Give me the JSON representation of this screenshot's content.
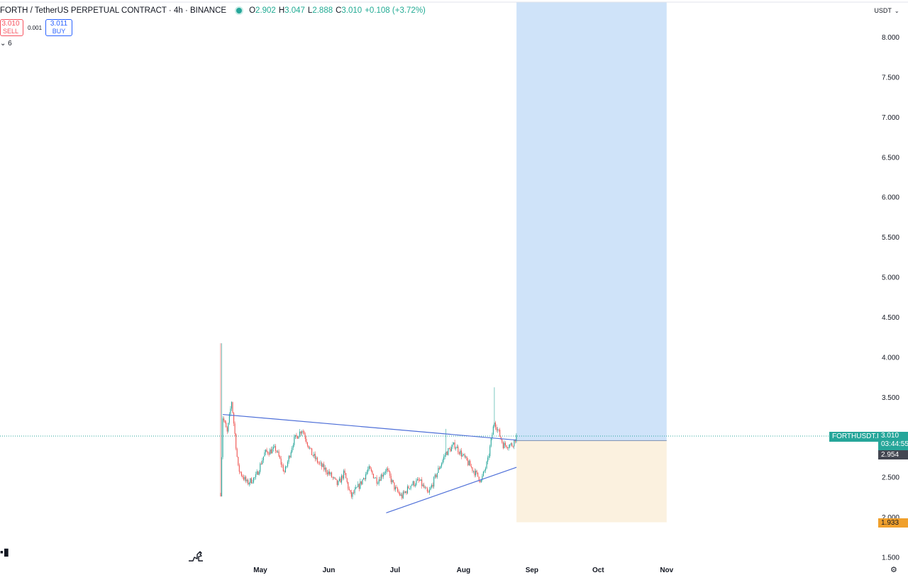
{
  "header": {
    "symbol_title": "FORTH / TetherUS PERPETUAL CONTRACT · 4h · BINANCE",
    "ohlc": {
      "o_label": "O",
      "o": "2.902",
      "h_label": "H",
      "h": "3.047",
      "l_label": "L",
      "l": "2.888",
      "c_label": "C",
      "c": "3.010",
      "change": "+0.108 (+3.72%)"
    }
  },
  "trade": {
    "sell_price": "3.010",
    "sell_label": "SELL",
    "spread": "0.001",
    "buy_price": "3.011",
    "buy_label": "BUY"
  },
  "indicator_label": "6",
  "currency": "USDT",
  "price_axis": {
    "symbol_label": "FORTHUSDT.P",
    "last_price": "3.010",
    "countdown": "03:44:55",
    "position_entry": "2.954",
    "stop_level": "1.933"
  },
  "colors": {
    "up": "#26a69a",
    "down": "#ef5350",
    "trendline": "#4e6fd8",
    "profit_zone": "#cfe3f9",
    "loss_zone": "#fbf1df"
  },
  "icons": {
    "logo": "tradingview-logo-icon",
    "watermark": "dino-icon",
    "settings": "gear-icon"
  },
  "chart_data": {
    "type": "candlestick",
    "title": "FORTH / TetherUS PERPETUAL CONTRACT · 4h · BINANCE",
    "x_ticks": [
      "May",
      "Jun",
      "Jul",
      "Aug",
      "Sep",
      "Oct",
      "Nov"
    ],
    "y_ticks": [
      "1.500",
      "2.000",
      "2.500",
      "3.000",
      "3.500",
      "4.000",
      "4.500",
      "5.000",
      "5.500",
      "6.000",
      "6.500",
      "7.000",
      "7.500",
      "8.000"
    ],
    "ylim": [
      1.45,
      8.4
    ],
    "grid": false,
    "series": [
      {
        "approx_close_path": [
          [
            "2024-04-13",
            2.3
          ],
          [
            "2024-04-14",
            3.25
          ],
          [
            "2024-04-16",
            3.05
          ],
          [
            "2024-04-18",
            3.45
          ],
          [
            "2024-04-21",
            2.6
          ],
          [
            "2024-04-25",
            2.42
          ],
          [
            "2024-04-29",
            2.5
          ],
          [
            "2024-05-03",
            2.8
          ],
          [
            "2024-05-08",
            2.85
          ],
          [
            "2024-05-12",
            2.55
          ],
          [
            "2024-05-16",
            2.95
          ],
          [
            "2024-05-20",
            3.1
          ],
          [
            "2024-05-24",
            2.8
          ],
          [
            "2024-05-28",
            2.65
          ],
          [
            "2024-06-01",
            2.55
          ],
          [
            "2024-06-05",
            2.4
          ],
          [
            "2024-06-08",
            2.55
          ],
          [
            "2024-06-11",
            2.25
          ],
          [
            "2024-06-15",
            2.4
          ],
          [
            "2024-06-19",
            2.6
          ],
          [
            "2024-06-23",
            2.45
          ],
          [
            "2024-06-27",
            2.6
          ],
          [
            "2024-07-01",
            2.35
          ],
          [
            "2024-07-04",
            2.25
          ],
          [
            "2024-07-08",
            2.4
          ],
          [
            "2024-07-12",
            2.45
          ],
          [
            "2024-07-16",
            2.28
          ],
          [
            "2024-07-20",
            2.55
          ],
          [
            "2024-07-24",
            2.8
          ],
          [
            "2024-07-28",
            2.9
          ],
          [
            "2024-08-01",
            2.75
          ],
          [
            "2024-08-05",
            2.6
          ],
          [
            "2024-08-09",
            2.45
          ],
          [
            "2024-08-12",
            2.7
          ],
          [
            "2024-08-15",
            3.2
          ],
          [
            "2024-08-19",
            2.9
          ],
          [
            "2024-08-23",
            2.9
          ],
          [
            "2024-08-25",
            3.01
          ]
        ],
        "wick_extremes": {
          "high": 4.17,
          "low": 2.15
        }
      }
    ],
    "annotations": {
      "descending_trendline": [
        [
          "2024-04-14",
          3.28
        ],
        [
          "2024-08-25",
          2.96
        ]
      ],
      "ascending_trendline": [
        [
          "2024-06-27",
          2.05
        ],
        [
          "2024-08-25",
          2.62
        ]
      ],
      "long_position": {
        "start": "2024-08-25",
        "end": "2024-11-01",
        "entry": 2.954,
        "target": 8.4,
        "stop": 1.933
      },
      "last_price_line": 3.01
    }
  }
}
